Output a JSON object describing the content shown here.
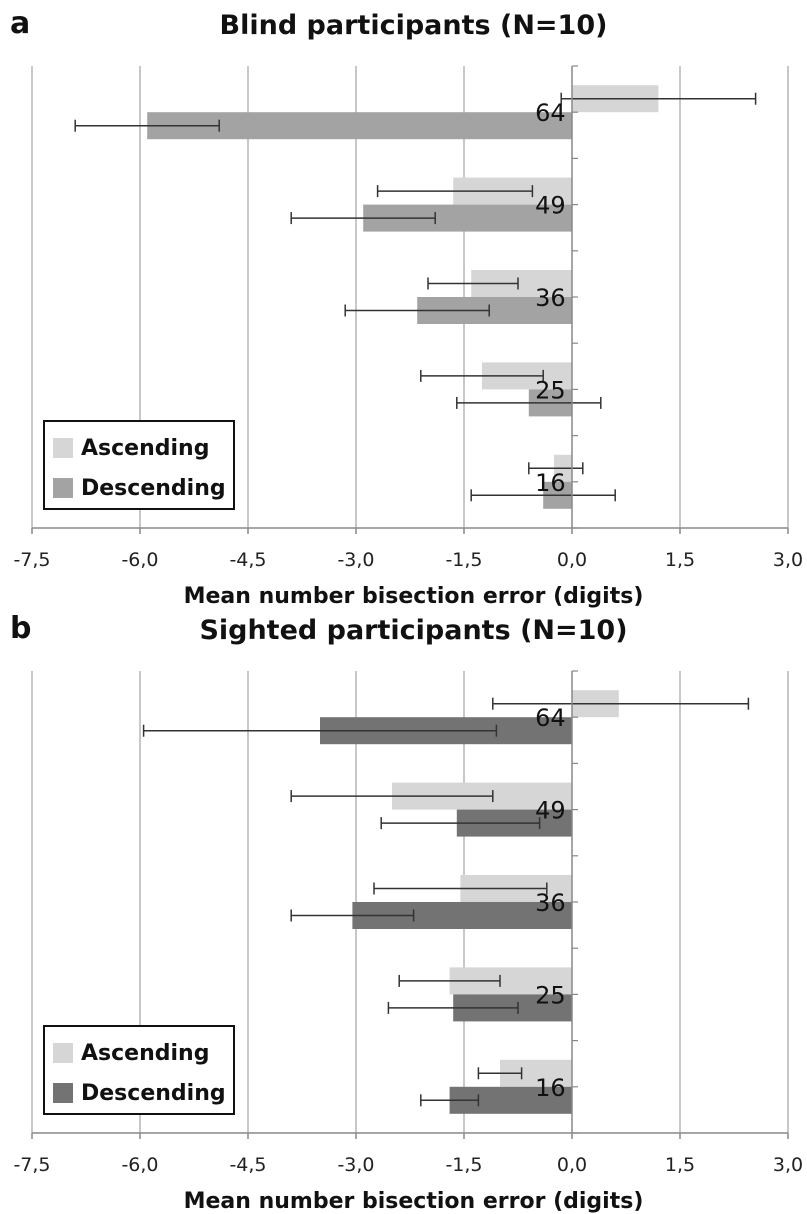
{
  "chart_data": [
    {
      "panel": "a",
      "type": "bar",
      "orientation": "horizontal",
      "title": "Blind participants (N=10)",
      "xlabel": "Mean number bisection error (digits)",
      "xlim": [
        -7.5,
        3.0
      ],
      "xticks": [
        "-7,5",
        "-6,0",
        "-4,5",
        "-3,0",
        "-1,5",
        "0,0",
        "1,5",
        "3,0"
      ],
      "xtick_values": [
        -7.5,
        -6.0,
        -4.5,
        -3.0,
        -1.5,
        0.0,
        1.5,
        3.0
      ],
      "grid": true,
      "legend_position": "bottom-left",
      "categories": [
        "64",
        "49",
        "36",
        "25",
        "16"
      ],
      "series": [
        {
          "name": "Ascending",
          "color": "#d6d6d6",
          "values": [
            1.2,
            -1.65,
            -1.4,
            -1.25,
            -0.25
          ],
          "error_low": [
            -0.15,
            -2.7,
            -2.0,
            -2.1,
            -0.6
          ],
          "error_high": [
            2.55,
            -0.55,
            -0.75,
            -0.4,
            0.15
          ]
        },
        {
          "name": "Descending",
          "color": "#a3a3a3",
          "values": [
            -5.9,
            -2.9,
            -2.15,
            -0.6,
            -0.4
          ],
          "error_low": [
            -6.9,
            -3.9,
            -3.15,
            -1.6,
            -1.4
          ],
          "error_high": [
            -4.9,
            -1.9,
            -1.15,
            0.4,
            0.6
          ]
        }
      ]
    },
    {
      "panel": "b",
      "type": "bar",
      "orientation": "horizontal",
      "title": "Sighted participants (N=10)",
      "xlabel": "Mean number bisection error (digits)",
      "xlim": [
        -7.5,
        3.0
      ],
      "xticks": [
        "-7,5",
        "-6,0",
        "-4,5",
        "-3,0",
        "-1,5",
        "0,0",
        "1,5",
        "3,0"
      ],
      "xtick_values": [
        -7.5,
        -6.0,
        -4.5,
        -3.0,
        -1.5,
        0.0,
        1.5,
        3.0
      ],
      "grid": true,
      "legend_position": "bottom-left",
      "categories": [
        "64",
        "49",
        "36",
        "25",
        "16"
      ],
      "series": [
        {
          "name": "Ascending",
          "color": "#d6d6d6",
          "values": [
            0.65,
            -2.5,
            -1.55,
            -1.7,
            -1.0
          ],
          "error_low": [
            -1.1,
            -3.9,
            -2.75,
            -2.4,
            -1.3
          ],
          "error_high": [
            2.45,
            -1.1,
            -0.35,
            -1.0,
            -0.7
          ]
        },
        {
          "name": "Descending",
          "color": "#737373",
          "values": [
            -3.5,
            -1.6,
            -3.05,
            -1.65,
            -1.7
          ],
          "error_low": [
            -5.95,
            -2.65,
            -3.9,
            -2.55,
            -2.1
          ],
          "error_high": [
            -1.05,
            -0.45,
            -2.2,
            -0.75,
            -1.3
          ]
        }
      ]
    }
  ]
}
